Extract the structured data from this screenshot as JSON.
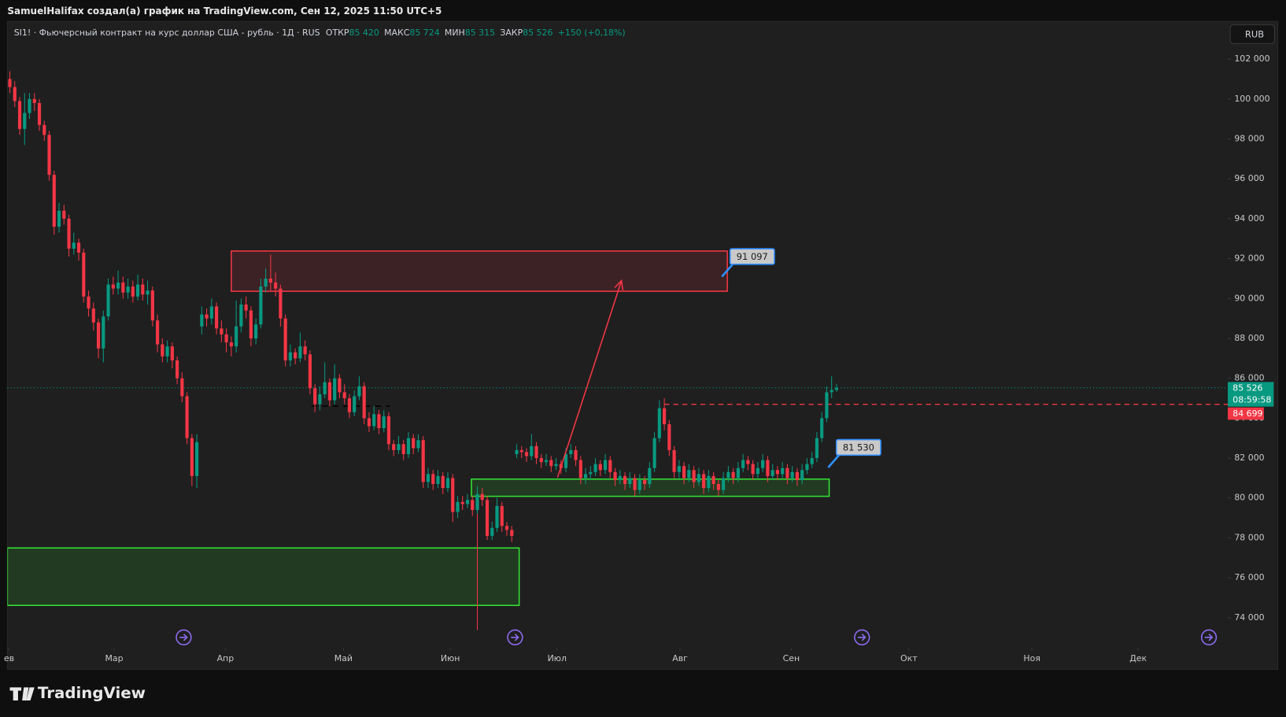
{
  "header": {
    "text": "SamuelHalifax создал(а) график на TradingView.com, Сен 12, 2025 11:50 UTC+5"
  },
  "footer": {
    "brand": "TradingView"
  },
  "chart_data": {
    "type": "candlestick",
    "symbol": "SI1! · Фьючерсный контракт на курс доллар США - рубль · 1Д · RUS",
    "legend": [
      {
        "label": "ОТКР",
        "value": {
          "value": 85420,
          "label": "85 420"
        }
      },
      {
        "label": "МАКС",
        "value": {
          "value": 85724,
          "label": "85 724"
        }
      },
      {
        "label": "МИН",
        "value": {
          "value": 85315,
          "label": "85 315"
        }
      },
      {
        "label": "ЗАКР",
        "value": {
          "value": 85526,
          "label": "85 526"
        }
      }
    ],
    "change": "+150 (+0,18%)",
    "currency": "RUB",
    "up_color": "#089981",
    "down_color": "#f23645",
    "grid": false,
    "xlim": [
      -0.5,
      247.5
    ],
    "xticks": [
      {
        "value": -0.3,
        "label": "ев"
      },
      {
        "value": 21.2,
        "label": "Мар"
      },
      {
        "value": 43.8,
        "label": "Апр"
      },
      {
        "value": 67.8,
        "label": "Май"
      },
      {
        "value": 89.5,
        "label": "Июн"
      },
      {
        "value": 111.2,
        "label": "Июл"
      },
      {
        "value": 136.2,
        "label": "Авг"
      },
      {
        "value": 158.8,
        "label": "Сен"
      },
      {
        "value": 182.7,
        "label": "Окт"
      },
      {
        "value": 207.7,
        "label": "Ноя"
      },
      {
        "value": 229.3,
        "label": "Дек"
      }
    ],
    "ylim": [
      72480,
      103890
    ],
    "yticks": [
      {
        "value": 74000,
        "label": "74 000"
      },
      {
        "value": 76000,
        "label": "76 000"
      },
      {
        "value": 78000,
        "label": "78 000"
      },
      {
        "value": 80000,
        "label": "80 000"
      },
      {
        "value": 82000,
        "label": "82 000"
      },
      {
        "value": 84000,
        "label": "84 000"
      },
      {
        "value": 86000,
        "label": "86 000"
      },
      {
        "value": 88000,
        "label": "88 000"
      },
      {
        "value": 90000,
        "label": "90 000"
      },
      {
        "value": 92000,
        "label": "92 000"
      },
      {
        "value": 94000,
        "label": "94 000"
      },
      {
        "value": 96000,
        "label": "96 000"
      },
      {
        "value": 98000,
        "label": "98 000"
      },
      {
        "value": 100000,
        "label": "100 000"
      },
      {
        "value": 102000,
        "label": "102 000"
      }
    ],
    "open": [
      101000,
      100600,
      99900,
      98500,
      99300,
      100000,
      99800,
      98700,
      98200,
      96200,
      93600,
      94400,
      94000,
      92500,
      92800,
      92300,
      90100,
      89500,
      88800,
      87500,
      89100,
      90700,
      90500,
      90800,
      90300,
      90600,
      90100,
      90700,
      90200,
      90400,
      88900,
      87700,
      87100,
      87600,
      86900,
      86000,
      85100,
      83000,
      81100,
      88600,
      89200,
      89000,
      89600,
      88500,
      88200,
      87800,
      87600,
      88600,
      89700,
      89400,
      88000,
      88700,
      90600,
      91000,
      90800,
      90500,
      89000,
      86900,
      87300,
      87000,
      87600,
      87200,
      85500,
      84700,
      85200,
      85800,
      84900,
      86000,
      85300,
      85000,
      84300,
      85100,
      85600,
      84000,
      83600,
      84200,
      83500,
      84100,
      82700,
      82400,
      82700,
      82200,
      83000,
      82500,
      82900,
      80800,
      81200,
      80700,
      81100,
      80500,
      81000,
      79300,
      79800,
      79700,
      79900,
      79400,
      80200,
      79900,
      78100,
      78500,
      79600,
      78600,
      78400,
      82200,
      82400,
      82300,
      82100,
      82600,
      82000,
      81800,
      81900,
      81600,
      81700,
      81500,
      82200,
      82400,
      81900,
      81000,
      81200,
      81300,
      81700,
      81400,
      81900,
      81300,
      80900,
      81100,
      80700,
      81000,
      80400,
      80900,
      80700,
      81500,
      83000,
      84500,
      83700,
      82400,
      81300,
      81600,
      81000,
      81400,
      80800,
      81200,
      80500,
      81100,
      80700,
      80400,
      81000,
      81300,
      81000,
      81500,
      81900,
      81700,
      81200,
      81500,
      81900,
      81100,
      81400,
      81200,
      81500,
      81000,
      81300,
      80900,
      81400,
      81700,
      82000,
      83000,
      84000,
      85300,
      85420
    ],
    "high": [
      101400,
      100900,
      100100,
      100300,
      100300,
      100300,
      100000,
      98900,
      98400,
      96400,
      94800,
      94700,
      94200,
      93300,
      93000,
      92500,
      90400,
      89800,
      89000,
      89400,
      91000,
      91100,
      91400,
      91100,
      91000,
      90900,
      91200,
      91000,
      90900,
      90600,
      89200,
      88000,
      87900,
      87800,
      87100,
      86300,
      85300,
      83200,
      83200,
      89600,
      89500,
      90000,
      89800,
      88900,
      88500,
      88100,
      89900,
      90000,
      90100,
      89600,
      89000,
      91000,
      91500,
      92200,
      91300,
      90700,
      89200,
      87700,
      87500,
      88300,
      87900,
      87400,
      85700,
      85600,
      86800,
      86000,
      86700,
      86200,
      85700,
      85200,
      85400,
      86100,
      85800,
      84300,
      84600,
      84400,
      84400,
      84300,
      82900,
      83100,
      82900,
      83300,
      83200,
      83200,
      83100,
      81500,
      81400,
      81400,
      81300,
      81300,
      81200,
      80100,
      80100,
      80200,
      80100,
      80600,
      80500,
      80100,
      78800,
      80000,
      79800,
      78800,
      78600,
      82700,
      82600,
      82500,
      83200,
      82800,
      82200,
      82200,
      82100,
      82000,
      81900,
      82500,
      82700,
      82600,
      82100,
      81500,
      81600,
      82000,
      81900,
      82200,
      82100,
      81500,
      81400,
      81300,
      81300,
      81200,
      81200,
      81100,
      81800,
      83300,
      84900,
      85000,
      83900,
      82600,
      81900,
      81800,
      81700,
      81600,
      81500,
      81400,
      81400,
      81300,
      80900,
      81300,
      81600,
      81500,
      81800,
      82200,
      82100,
      81900,
      81800,
      82200,
      82100,
      81700,
      81600,
      81800,
      81700,
      81600,
      81500,
      81700,
      82000,
      82300,
      83300,
      84300,
      85600,
      86100,
      85724
    ],
    "low": [
      100300,
      99600,
      98200,
      97700,
      99000,
      99400,
      98400,
      97900,
      95900,
      93200,
      93300,
      93700,
      92100,
      92200,
      91900,
      89800,
      89100,
      88400,
      87000,
      86800,
      88900,
      90200,
      90200,
      90000,
      90000,
      89800,
      89900,
      89900,
      89700,
      88600,
      87300,
      86800,
      86800,
      86500,
      85700,
      84800,
      82700,
      80600,
      80500,
      88200,
      88600,
      88700,
      88200,
      87800,
      87300,
      87100,
      87300,
      88300,
      89000,
      87600,
      87700,
      88500,
      90300,
      90400,
      90100,
      88600,
      86600,
      86600,
      86700,
      86800,
      86900,
      85200,
      84300,
      84400,
      85000,
      84600,
      84700,
      85000,
      84700,
      84000,
      84100,
      84900,
      83700,
      83300,
      83400,
      83200,
      83300,
      82400,
      82100,
      82200,
      81900,
      82000,
      82200,
      82300,
      80500,
      80500,
      80400,
      80500,
      80200,
      80300,
      78800,
      79000,
      79400,
      79500,
      79100,
      79200,
      79600,
      77900,
      77900,
      78300,
      78300,
      78100,
      77800,
      82000,
      82000,
      81800,
      81900,
      81700,
      81500,
      81600,
      81300,
      81400,
      81200,
      81300,
      82000,
      81600,
      80700,
      80700,
      80900,
      81100,
      81100,
      81200,
      81000,
      80600,
      80700,
      80400,
      80500,
      80100,
      80200,
      80400,
      80500,
      81300,
      82800,
      83400,
      82100,
      81000,
      81000,
      80700,
      80800,
      80500,
      80600,
      80200,
      80300,
      80400,
      80100,
      80200,
      80800,
      80700,
      80800,
      81300,
      81400,
      80900,
      81000,
      81300,
      80800,
      80900,
      80900,
      81000,
      80700,
      80800,
      80600,
      80700,
      81200,
      81500,
      81800,
      82800,
      83800,
      85000,
      85315
    ],
    "close": [
      100600,
      99900,
      98500,
      99300,
      100000,
      99800,
      98700,
      98200,
      96200,
      93600,
      94400,
      94000,
      92500,
      92800,
      92300,
      90100,
      89500,
      88800,
      87500,
      89100,
      90700,
      90500,
      90800,
      90300,
      90600,
      90100,
      90700,
      90200,
      90400,
      88900,
      87700,
      87100,
      87600,
      86900,
      86000,
      85100,
      83000,
      81100,
      82800,
      89200,
      89000,
      89600,
      88500,
      88200,
      87800,
      87600,
      88600,
      89700,
      89400,
      88000,
      88700,
      90600,
      91000,
      90800,
      90500,
      89000,
      86900,
      87300,
      87000,
      87600,
      87200,
      85500,
      84700,
      85200,
      85800,
      84900,
      86000,
      85300,
      85000,
      84300,
      85100,
      85600,
      84000,
      83600,
      84200,
      83500,
      84100,
      82700,
      82400,
      82700,
      82200,
      83000,
      82500,
      82900,
      80800,
      81200,
      80700,
      81100,
      80500,
      81000,
      79300,
      79800,
      79700,
      79900,
      79400,
      80200,
      79900,
      78100,
      78500,
      79600,
      78600,
      78400,
      78100,
      82400,
      82300,
      82100,
      82600,
      82000,
      81800,
      81900,
      81600,
      81700,
      81500,
      82200,
      82400,
      81900,
      81000,
      81200,
      81300,
      81700,
      81400,
      81900,
      81300,
      80900,
      81100,
      80700,
      81000,
      80400,
      80900,
      80700,
      81500,
      83000,
      84500,
      83700,
      82400,
      81300,
      81600,
      81000,
      81400,
      80800,
      81200,
      80500,
      81100,
      80700,
      80400,
      81000,
      81300,
      81000,
      81500,
      81900,
      81700,
      81200,
      81500,
      81900,
      81100,
      81400,
      81200,
      81500,
      81000,
      81300,
      80900,
      81400,
      81700,
      82000,
      83000,
      84000,
      85300,
      85420,
      85526
    ],
    "last_price": {
      "value": 85526,
      "label": "85 526"
    },
    "countdown": "08:59:58",
    "level": {
      "value": 84699,
      "label": "84 699",
      "from": 133
    },
    "zones": [
      {
        "x": [
          45,
          145.8
        ],
        "y": [
          90364,
          92379
        ],
        "color": "#f23645"
      },
      {
        "x": [
          93.8,
          166.5
        ],
        "y": [
          80085,
          80948
        ],
        "color": "#35e035"
      },
      {
        "x": [
          -0.5,
          103.5
        ],
        "y": [
          74617,
          77495
        ],
        "color": "#35e035"
      }
    ],
    "arrow": {
      "x": [
        111.3,
        124.3
      ],
      "y": [
        81031,
        90899
      ],
      "color": "#f23645"
    },
    "dashed": {
      "x": [
        61.3,
        77.2
      ],
      "y": 84607
    },
    "vline": {
      "x": 95,
      "y": [
        80400,
        73383
      ]
    },
    "callouts": [
      {
        "x": 144.7,
        "value": 91097,
        "label": "91 097"
      },
      {
        "x": 166.3,
        "value": 81530,
        "label": "81 530"
      }
    ]
  }
}
